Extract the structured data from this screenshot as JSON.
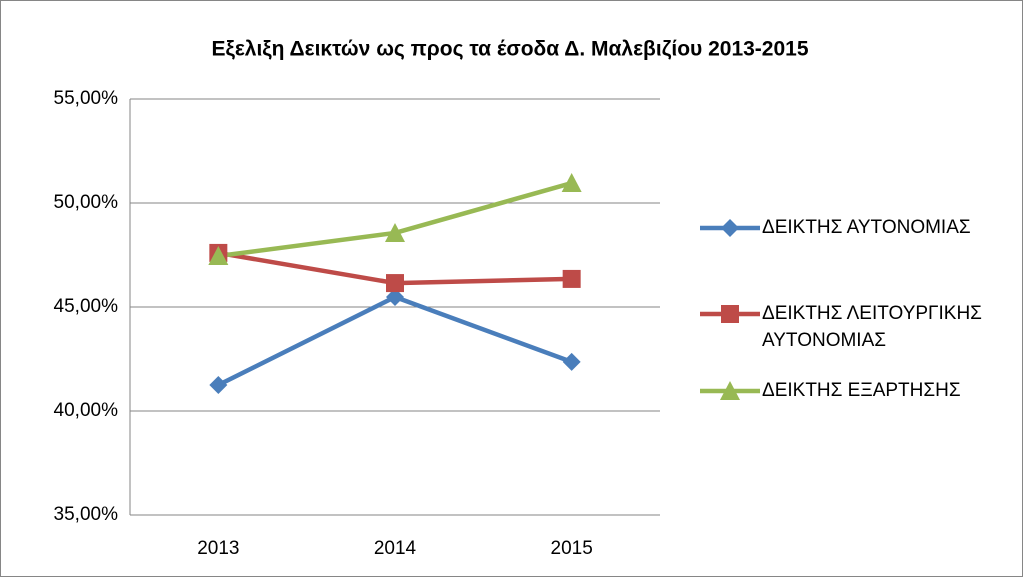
{
  "chart_data": {
    "type": "line",
    "title": "Εξελιξη Δεικτών ως προς τα έσοδα Δ. Μαλεβιζίου 2013-2015",
    "categories": [
      "2013",
      "2014",
      "2015"
    ],
    "series": [
      {
        "name": "ΔΕΙΚΤΗΣ ΑΥΤΟΝΟΜΙΑΣ",
        "color": "#4a7ebb",
        "marker": "diamond",
        "values": [
          41.25,
          45.48,
          42.36
        ]
      },
      {
        "name": "ΔΕΙΚΤΗΣ ΛΕΙΤΟΥΡΓΙΚΗΣ ΑΥΤΟΝΟΜΙΑΣ",
        "color": "#be4b48",
        "marker": "square",
        "values": [
          47.6,
          46.15,
          46.35
        ]
      },
      {
        "name": "ΔΕΙΚΤΗΣ ΕΞΑΡΤΗΣΗΣ",
        "color": "#98b954",
        "marker": "triangle",
        "values": [
          47.45,
          48.56,
          50.96
        ]
      }
    ],
    "ylim": [
      35,
      55
    ],
    "yticks": [
      {
        "value": 35,
        "label": "35,00%"
      },
      {
        "value": 40,
        "label": "40,00%"
      },
      {
        "value": 45,
        "label": "45,00%"
      },
      {
        "value": 50,
        "label": "50,00%"
      },
      {
        "value": 55,
        "label": "55,00%"
      }
    ],
    "grid": true,
    "legend": "right"
  }
}
